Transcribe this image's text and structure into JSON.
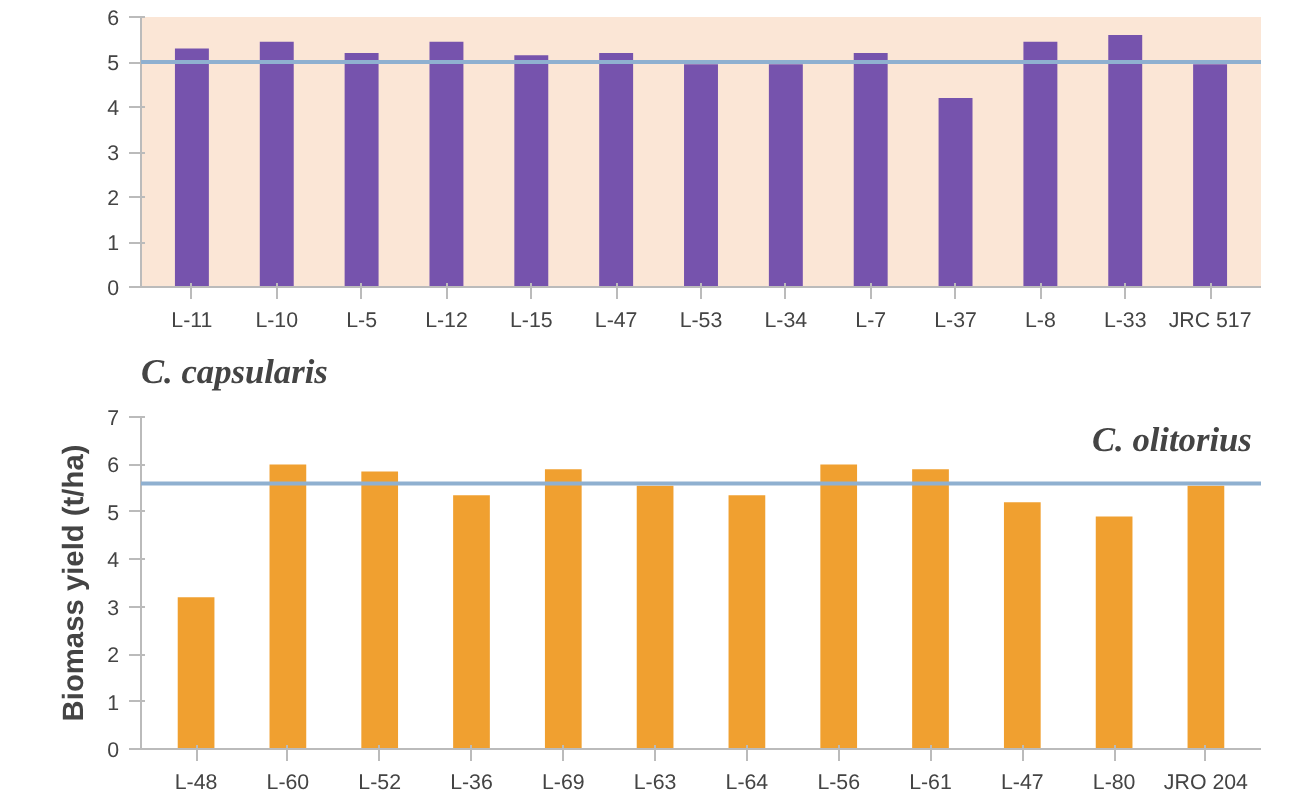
{
  "chart_data": [
    {
      "type": "bar",
      "title": "C. capsularis",
      "categories": [
        "L-11",
        "L-10",
        "L-5",
        "L-12",
        "L-15",
        "L-47",
        "L-53",
        "L-34",
        "L-7",
        "L-37",
        "L-8",
        "L-33",
        "JRC 517"
      ],
      "values": [
        5.3,
        5.45,
        5.2,
        5.45,
        5.15,
        5.2,
        4.95,
        4.95,
        5.2,
        4.2,
        5.45,
        5.6,
        4.95
      ],
      "color": "#7653ad",
      "ylim": [
        0,
        6
      ],
      "yticks": [
        0,
        1,
        2,
        3,
        4,
        5,
        6
      ],
      "grid": false,
      "ref_lines": [
        {
          "axis": "y",
          "value": 5,
          "color": "#8fb0d0"
        }
      ]
    },
    {
      "type": "bar",
      "title": "C. olitorius",
      "ylabel": "Biomass yield (t/ha)",
      "categories": [
        "L-48",
        "L-60",
        "L-52",
        "L-36",
        "L-69",
        "L-63",
        "L-64",
        "L-56",
        "L-61",
        "L-47",
        "L-80",
        "JRO 204"
      ],
      "values": [
        3.2,
        6.0,
        5.85,
        5.35,
        5.9,
        5.55,
        5.35,
        6.0,
        5.9,
        5.2,
        4.9,
        5.55
      ],
      "color": "#f0a030",
      "ylim": [
        0,
        7
      ],
      "yticks": [
        0,
        1,
        2,
        3,
        4,
        5,
        6,
        7
      ],
      "grid": false,
      "ref_lines": [
        {
          "axis": "y",
          "value": 5.6,
          "color": "#8fb0d0"
        }
      ]
    }
  ]
}
